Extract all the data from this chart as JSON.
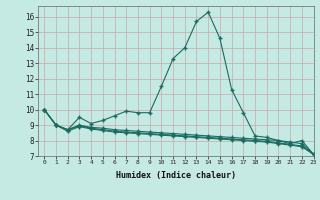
{
  "xlabel": "Humidex (Indice chaleur)",
  "ylabel": "",
  "xlim": [
    -0.5,
    23
  ],
  "ylim": [
    7,
    16.7
  ],
  "xticks": [
    0,
    1,
    2,
    3,
    4,
    5,
    6,
    7,
    8,
    9,
    10,
    11,
    12,
    13,
    14,
    15,
    16,
    17,
    18,
    19,
    20,
    21,
    22,
    23
  ],
  "yticks": [
    7,
    8,
    9,
    10,
    11,
    12,
    13,
    14,
    15,
    16
  ],
  "background_color": "#c5eae4",
  "grid_color": "#c8a8a8",
  "line_color": "#1a6b60",
  "series1": [
    10.0,
    9.0,
    8.7,
    9.5,
    9.1,
    9.3,
    9.6,
    9.9,
    9.8,
    9.8,
    11.5,
    13.3,
    14.0,
    15.7,
    16.3,
    14.6,
    11.3,
    9.8,
    8.3,
    8.2,
    8.0,
    7.8,
    8.0,
    7.1
  ],
  "series2": [
    10.0,
    9.0,
    8.7,
    9.0,
    8.85,
    8.8,
    8.7,
    8.65,
    8.6,
    8.55,
    8.5,
    8.45,
    8.4,
    8.35,
    8.3,
    8.25,
    8.2,
    8.15,
    8.1,
    8.05,
    8.0,
    7.9,
    7.8,
    7.1
  ],
  "series3": [
    10.0,
    9.0,
    8.7,
    8.95,
    8.8,
    8.7,
    8.6,
    8.55,
    8.5,
    8.45,
    8.4,
    8.35,
    8.3,
    8.25,
    8.2,
    8.15,
    8.1,
    8.05,
    8.0,
    7.95,
    7.85,
    7.75,
    7.65,
    7.1
  ],
  "series4": [
    10.0,
    9.0,
    8.6,
    8.9,
    8.75,
    8.65,
    8.55,
    8.5,
    8.45,
    8.4,
    8.35,
    8.3,
    8.25,
    8.2,
    8.15,
    8.1,
    8.05,
    8.0,
    7.95,
    7.9,
    7.8,
    7.7,
    7.6,
    7.1
  ]
}
